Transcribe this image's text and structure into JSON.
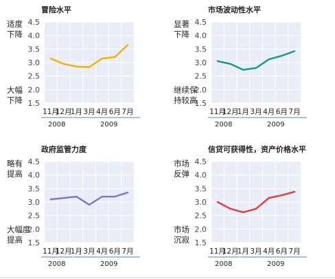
{
  "chart_data": [
    {
      "type": "line",
      "title": "冒险水平",
      "annotation_top": [
        "适度",
        "下降"
      ],
      "annotation_bottom": [
        "大幅",
        "下降"
      ],
      "categories": [
        "11月",
        "12月",
        "1月",
        "3月",
        "4月",
        "6月",
        "7月"
      ],
      "year_labels": [
        "2008",
        "2009"
      ],
      "yticks": [
        "4.5",
        "4.0",
        "3.5",
        "3.0",
        "2.5",
        "2.0",
        "1.5"
      ],
      "ylim": [
        1.5,
        4.5
      ],
      "grid": true,
      "color": "#f2b400",
      "values": [
        3.15,
        2.95,
        2.85,
        2.83,
        3.15,
        3.2,
        3.65
      ]
    },
    {
      "type": "line",
      "title": "市场波动性水平",
      "annotation_top": [
        "显著",
        "下降"
      ],
      "annotation_bottom": [
        "继续保",
        "持较高"
      ],
      "categories": [
        "11月",
        "12月",
        "1月",
        "3月",
        "4月",
        "6月",
        "7月"
      ],
      "year_labels": [
        "2008",
        "2009"
      ],
      "yticks": [
        "4.5",
        "4.0",
        "3.5",
        "3.0",
        "2.5",
        "2.0",
        "1.5"
      ],
      "ylim": [
        1.5,
        4.5
      ],
      "grid": true,
      "color": "#159a8c",
      "values": [
        3.05,
        2.95,
        2.73,
        2.8,
        3.12,
        3.25,
        3.42
      ]
    },
    {
      "type": "line",
      "title": "政府监管力度",
      "annotation_top": [
        "略有",
        "提高"
      ],
      "annotation_bottom": [
        "大幅度",
        "提高"
      ],
      "categories": [
        "11月",
        "12月",
        "1月",
        "3月",
        "4月",
        "6月",
        "7月"
      ],
      "year_labels": [
        "2008",
        "2009"
      ],
      "yticks": [
        "4.5",
        "4.0",
        "3.5",
        "3.0",
        "2.5",
        "2.0",
        "1.5"
      ],
      "ylim": [
        1.5,
        4.5
      ],
      "grid": true,
      "color": "#7d78c8",
      "values": [
        3.1,
        3.15,
        3.2,
        2.9,
        3.2,
        3.2,
        3.35
      ]
    },
    {
      "type": "line",
      "title": "信贷可获得性，资产价格水平",
      "annotation_top": [
        "市场",
        "反弹"
      ],
      "annotation_bottom": [
        "市场",
        "沉寂"
      ],
      "categories": [
        "11月",
        "12月",
        "1月",
        "3月",
        "4月",
        "6月",
        "7月"
      ],
      "year_labels": [
        "2008",
        "2009"
      ],
      "yticks": [
        "4.5",
        "4.0",
        "3.5",
        "3.0",
        "2.5",
        "2.0",
        "1.5"
      ],
      "ylim": [
        1.5,
        4.5
      ],
      "grid": true,
      "color": "#e83a3f",
      "values": [
        3.0,
        2.75,
        2.62,
        2.75,
        3.15,
        3.25,
        3.38
      ]
    }
  ]
}
